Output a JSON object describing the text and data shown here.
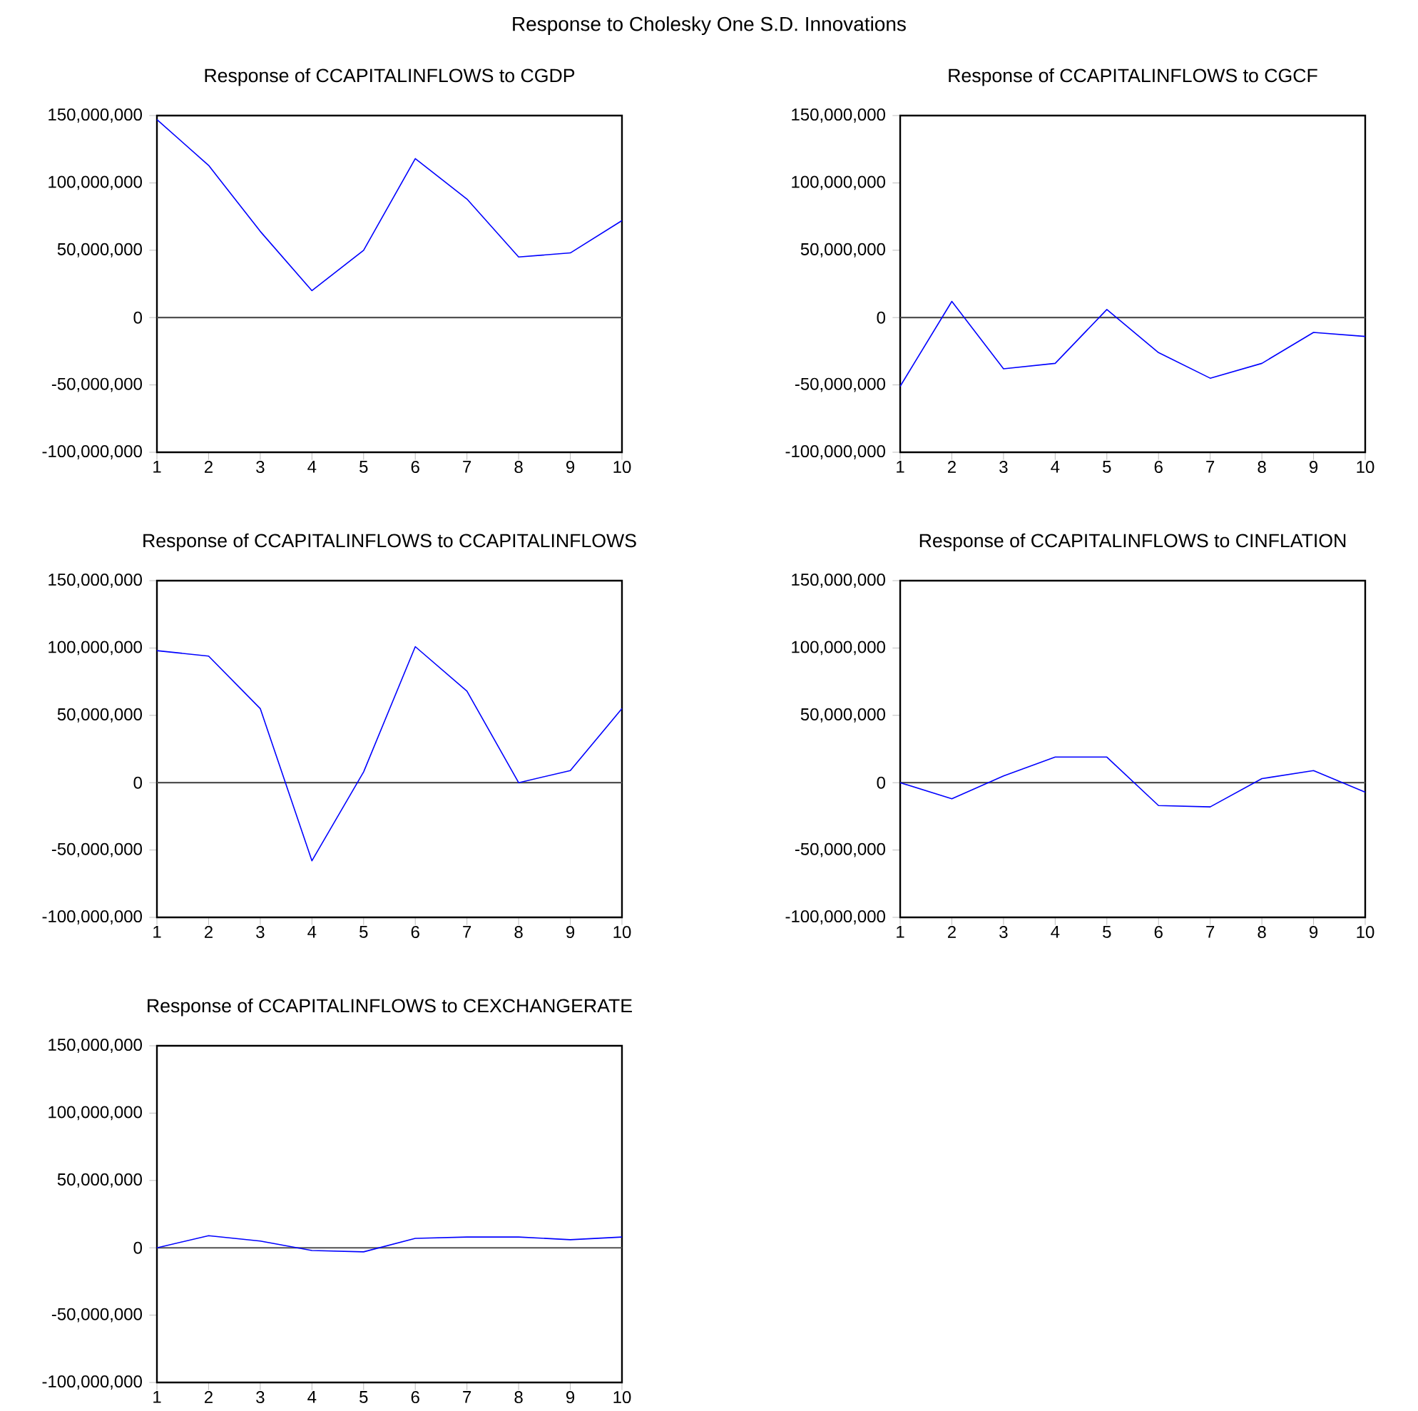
{
  "chart_data": [
    {
      "type": "line",
      "title": "Response of CCAPITALINFLOWS to CGDP",
      "annotations": [
        "Response to Cholesky One S.D. Innovations"
      ],
      "x": [
        1,
        2,
        3,
        4,
        5,
        6,
        7,
        8,
        9,
        10
      ],
      "xlim": [
        1,
        10
      ],
      "xticks": [
        1,
        2,
        3,
        4,
        5,
        6,
        7,
        8,
        9,
        10
      ],
      "ylim": [
        -100000000,
        150000000
      ],
      "yticks": [
        {
          "value": -100000000,
          "label": "-100,000,000"
        },
        {
          "value": -50000000,
          "label": "-50,000,000"
        },
        {
          "value": 0,
          "label": "0"
        },
        {
          "value": 50000000,
          "label": "50,000,000"
        },
        {
          "value": 100000000,
          "label": "100,000,000"
        },
        {
          "value": 150000000,
          "label": "150,000,000"
        }
      ],
      "series": [
        {
          "color": "#0000ff",
          "values": [
            147000000,
            113000000,
            64000000,
            20000000,
            50000000,
            118000000,
            88000000,
            45000000,
            48000000,
            72000000
          ]
        }
      ],
      "ref_lines": [
        {
          "axis": "y",
          "value": 0,
          "color": "#505050"
        }
      ]
    },
    {
      "type": "line",
      "title": "Response of CCAPITALINFLOWS to CGCF",
      "x": [
        1,
        2,
        3,
        4,
        5,
        6,
        7,
        8,
        9,
        10
      ],
      "xlim": [
        1,
        10
      ],
      "xticks": [
        1,
        2,
        3,
        4,
        5,
        6,
        7,
        8,
        9,
        10
      ],
      "ylim": [
        -100000000,
        150000000
      ],
      "yticks": [
        {
          "value": -100000000,
          "label": "-100,000,000"
        },
        {
          "value": -50000000,
          "label": "-50,000,000"
        },
        {
          "value": 0,
          "label": "0"
        },
        {
          "value": 50000000,
          "label": "50,000,000"
        },
        {
          "value": 100000000,
          "label": "100,000,000"
        },
        {
          "value": 150000000,
          "label": "150,000,000"
        }
      ],
      "series": [
        {
          "color": "#0000ff",
          "values": [
            -51000000,
            12000000,
            -38000000,
            -34000000,
            6000000,
            -26000000,
            -45000000,
            -34000000,
            -11000000,
            -14000000
          ]
        }
      ],
      "ref_lines": [
        {
          "axis": "y",
          "value": 0,
          "color": "#505050"
        }
      ]
    },
    {
      "type": "line",
      "title": "Response of CCAPITALINFLOWS to CCAPITALINFLOWS",
      "x": [
        1,
        2,
        3,
        4,
        5,
        6,
        7,
        8,
        9,
        10
      ],
      "xlim": [
        1,
        10
      ],
      "xticks": [
        1,
        2,
        3,
        4,
        5,
        6,
        7,
        8,
        9,
        10
      ],
      "ylim": [
        -100000000,
        150000000
      ],
      "yticks": [
        {
          "value": -100000000,
          "label": "-100,000,000"
        },
        {
          "value": -50000000,
          "label": "-50,000,000"
        },
        {
          "value": 0,
          "label": "0"
        },
        {
          "value": 50000000,
          "label": "50,000,000"
        },
        {
          "value": 100000000,
          "label": "100,000,000"
        },
        {
          "value": 150000000,
          "label": "150,000,000"
        }
      ],
      "series": [
        {
          "color": "#0000ff",
          "values": [
            98000000,
            94000000,
            55000000,
            -58000000,
            8000000,
            101000000,
            68000000,
            0,
            9000000,
            55000000
          ]
        }
      ],
      "ref_lines": [
        {
          "axis": "y",
          "value": 0,
          "color": "#505050"
        }
      ]
    },
    {
      "type": "line",
      "title": "Response of CCAPITALINFLOWS to CINFLATION",
      "x": [
        1,
        2,
        3,
        4,
        5,
        6,
        7,
        8,
        9,
        10
      ],
      "xlim": [
        1,
        10
      ],
      "xticks": [
        1,
        2,
        3,
        4,
        5,
        6,
        7,
        8,
        9,
        10
      ],
      "ylim": [
        -100000000,
        150000000
      ],
      "yticks": [
        {
          "value": -100000000,
          "label": "-100,000,000"
        },
        {
          "value": -50000000,
          "label": "-50,000,000"
        },
        {
          "value": 0,
          "label": "0"
        },
        {
          "value": 50000000,
          "label": "50,000,000"
        },
        {
          "value": 100000000,
          "label": "100,000,000"
        },
        {
          "value": 150000000,
          "label": "150,000,000"
        }
      ],
      "series": [
        {
          "color": "#0000ff",
          "values": [
            0,
            -12000000,
            5000000,
            19000000,
            19000000,
            -17000000,
            -18000000,
            3000000,
            9000000,
            -7000000
          ]
        }
      ],
      "ref_lines": [
        {
          "axis": "y",
          "value": 0,
          "color": "#505050"
        }
      ]
    },
    {
      "type": "line",
      "title": "Response of CCAPITALINFLOWS to CEXCHANGERATE",
      "x": [
        1,
        2,
        3,
        4,
        5,
        6,
        7,
        8,
        9,
        10
      ],
      "xlim": [
        1,
        10
      ],
      "xticks": [
        1,
        2,
        3,
        4,
        5,
        6,
        7,
        8,
        9,
        10
      ],
      "ylim": [
        -100000000,
        150000000
      ],
      "yticks": [
        {
          "value": -100000000,
          "label": "-100,000,000"
        },
        {
          "value": -50000000,
          "label": "-50,000,000"
        },
        {
          "value": 0,
          "label": "0"
        },
        {
          "value": 50000000,
          "label": "50,000,000"
        },
        {
          "value": 100000000,
          "label": "100,000,000"
        },
        {
          "value": 150000000,
          "label": "150,000,000"
        }
      ],
      "series": [
        {
          "color": "#0000ff",
          "values": [
            0,
            9000000,
            5000000,
            -2000000,
            -3000000,
            7000000,
            8000000,
            8000000,
            6000000,
            8000000
          ]
        }
      ],
      "ref_lines": [
        {
          "axis": "y",
          "value": 0,
          "color": "#505050"
        }
      ]
    }
  ]
}
